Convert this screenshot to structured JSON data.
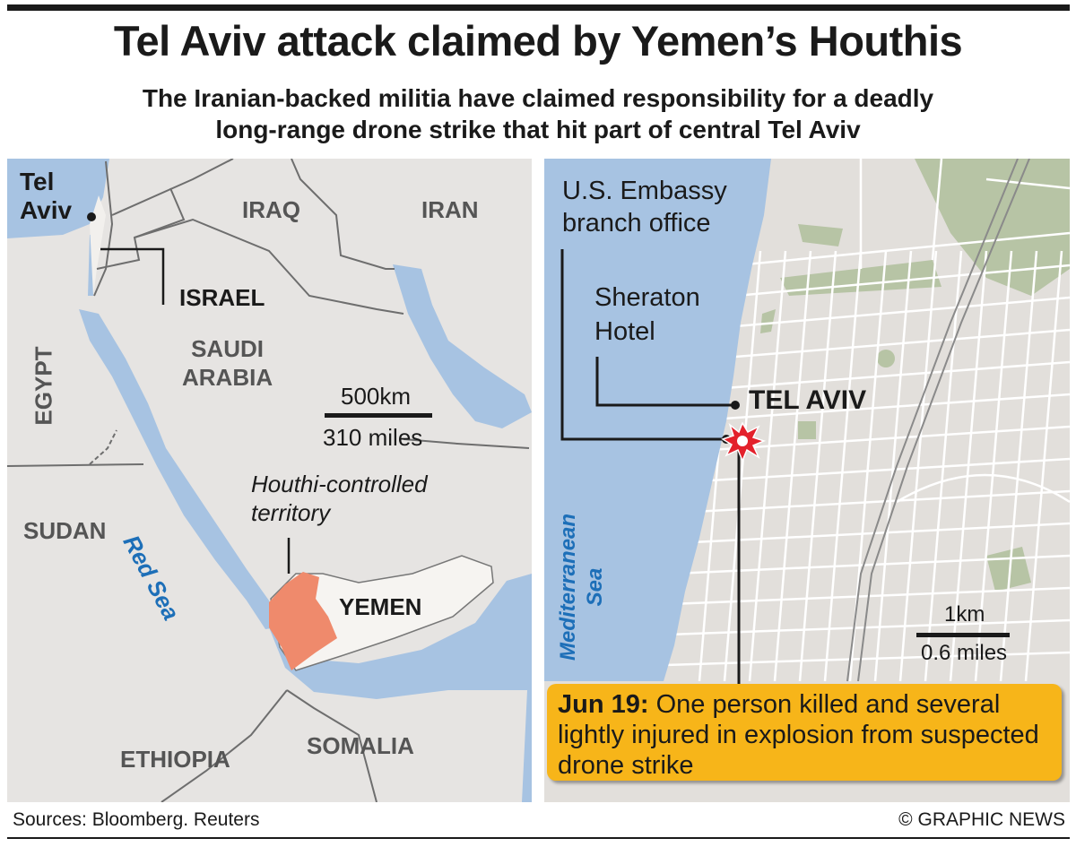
{
  "header": {
    "title": "Tel Aviv attack claimed by Yemen’s Houthis",
    "subtitle_lines": [
      "The Iranian-backed militia have claimed responsibility for a deadly",
      "long-range drone strike that hit part of central Tel Aviv"
    ]
  },
  "regional_map": {
    "labels": {
      "tel_aviv": [
        "Tel",
        "Aviv"
      ],
      "iraq": "IRAQ",
      "iran": "IRAN",
      "israel": "ISRAEL",
      "egypt": "EGYPT",
      "saudi": [
        "SAUDI",
        "ARABIA"
      ],
      "sudan": "SUDAN",
      "yemen": "YEMEN",
      "ethiopia": "ETHIOPIA",
      "somalia": "SOMALIA",
      "red_sea": "Red Sea",
      "houthi": [
        "Houthi-controlled",
        "territory"
      ]
    },
    "scale": {
      "km": "500km",
      "miles": "310 miles"
    },
    "colors": {
      "sea": "#a7c3e2",
      "land": "#e6e4e2",
      "yemen": "#f6f4f1",
      "houthi": "#ef8a6c"
    }
  },
  "city_map": {
    "labels": {
      "embassy": [
        "U.S. Embassy",
        "branch office"
      ],
      "sheraton": [
        "Sheraton",
        "Hotel"
      ],
      "tel_aviv": "TEL AVIV",
      "sea": [
        "Mediterranean",
        "Sea"
      ]
    },
    "scale": {
      "km": "1km",
      "miles": "0.6 miles"
    },
    "icons": [
      "explosion-icon"
    ],
    "colors": {
      "explosion": "#e3212b",
      "park": "#b7c4a5"
    }
  },
  "callout": {
    "date": "Jun 19:",
    "text": "One person killed and several lightly injured in explosion from suspected drone strike",
    "color": "#f7b519"
  },
  "footer": {
    "sources": "Sources: Bloomberg. Reuters",
    "credit": "© GRAPHIC NEWS"
  }
}
